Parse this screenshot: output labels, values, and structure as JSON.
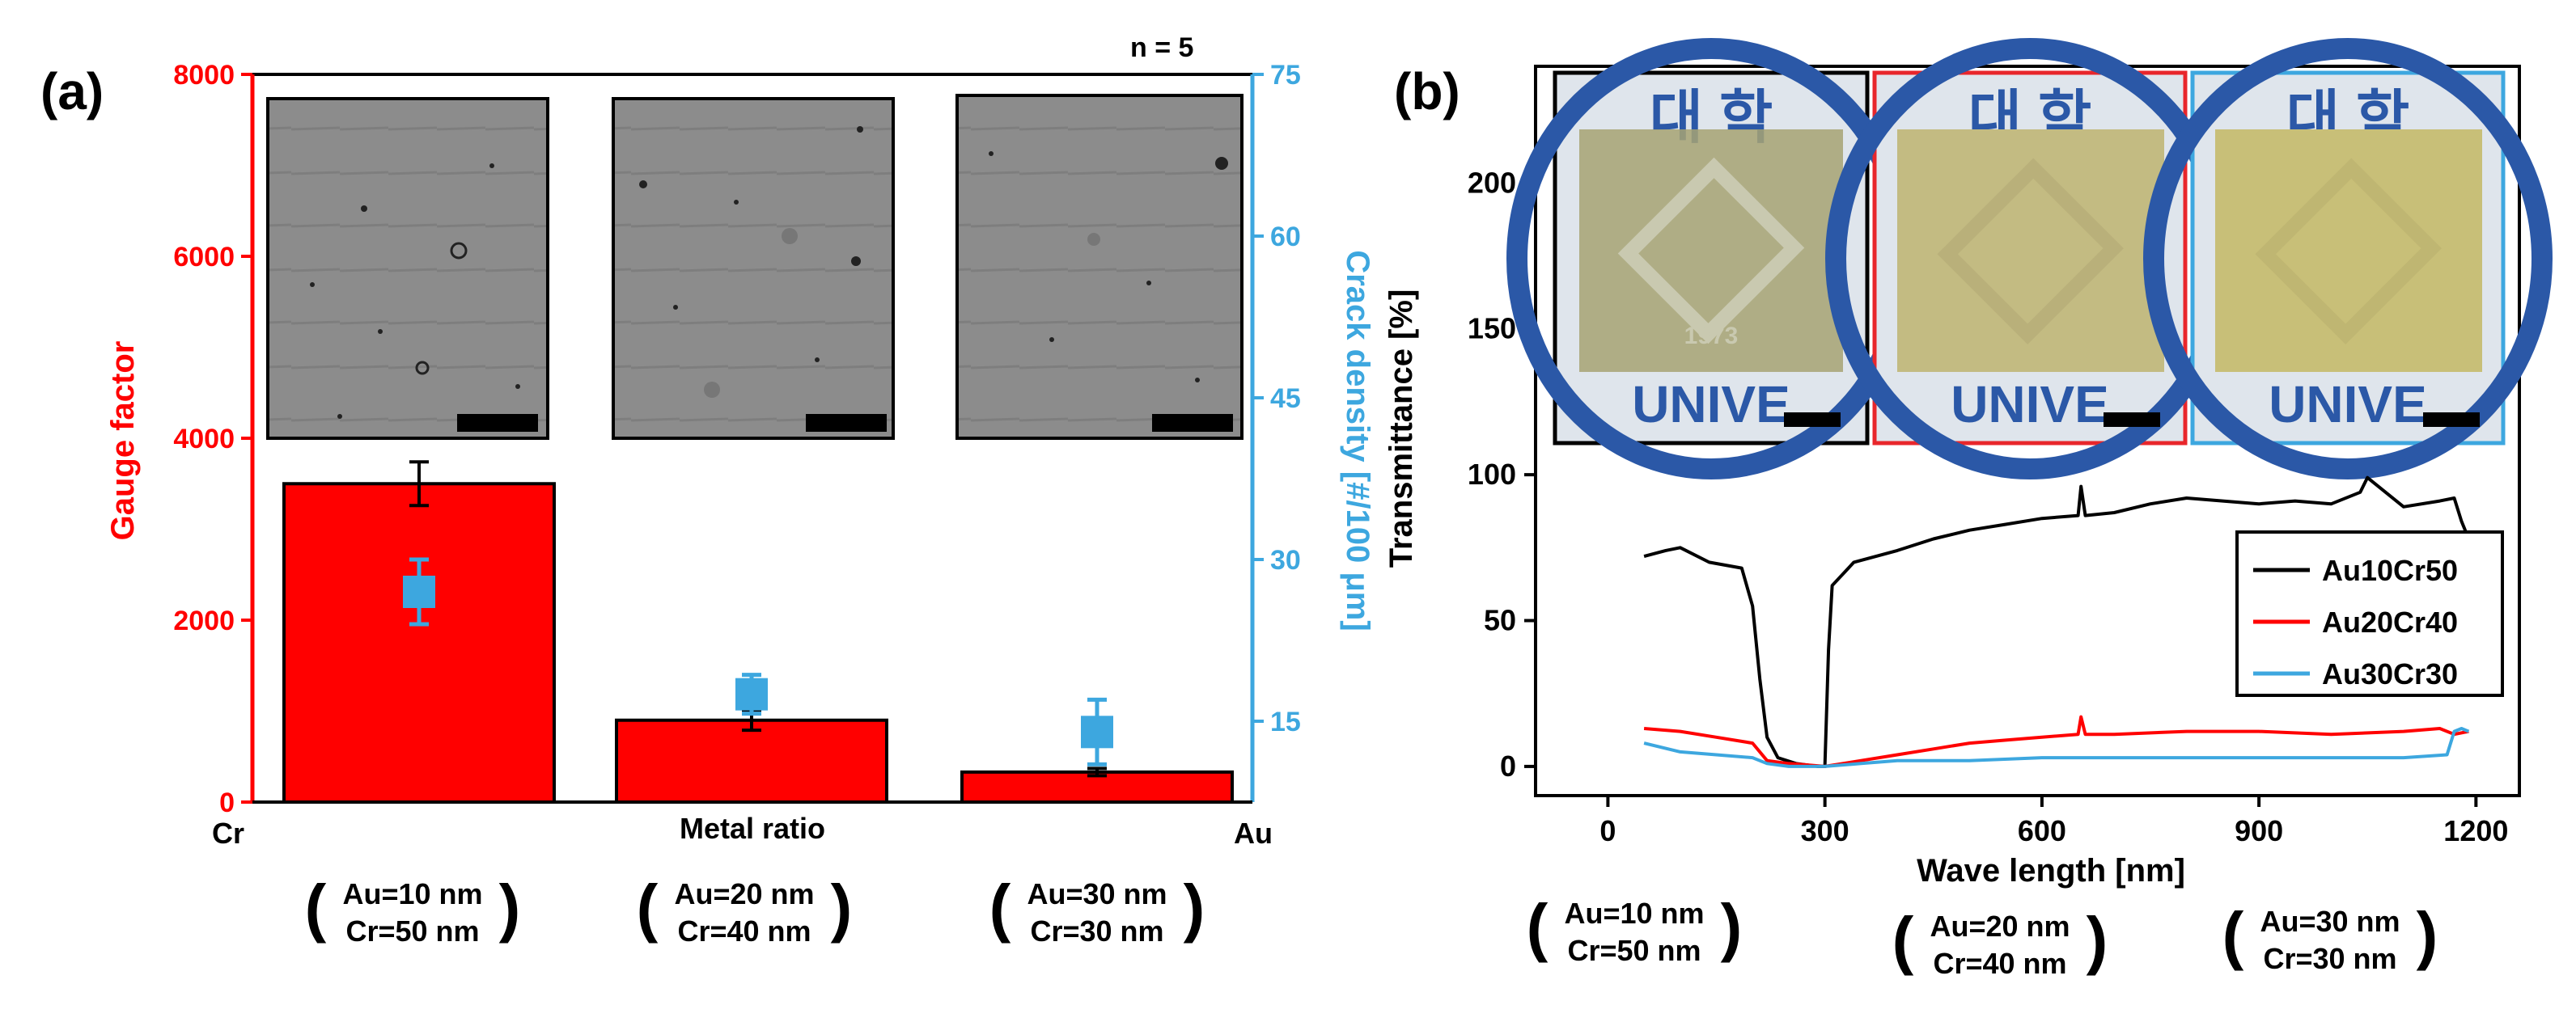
{
  "panel_a": {
    "label": "(a)",
    "n_label": "n = 5",
    "left_axis_label": "Gauge factor",
    "right_axis_label": "Crack density [#/100 μm]",
    "x_axis_label": "Metal ratio",
    "x_left_end": "Cr",
    "x_right_end": "Au",
    "inset_names": [
      "sem-inset-au10cr50",
      "sem-inset-au20cr40",
      "sem-inset-au30cr30"
    ]
  },
  "panel_b": {
    "label": "(b)",
    "y_axis_label": "Transmittance [%]",
    "x_axis_label": "Wave length [nm]",
    "photo_frame_colors": [
      "#000000",
      "#e8262b",
      "#3da7df"
    ],
    "photo_background_text": "대 학",
    "photo_bottom_text": "UNIVE",
    "photo_year_text": "1973"
  },
  "compositions": [
    {
      "au": "Au=10 nm",
      "cr": "Cr=50 nm"
    },
    {
      "au": "Au=20 nm",
      "cr": "Cr=40 nm"
    },
    {
      "au": "Au=30 nm",
      "cr": "Cr=30 nm"
    }
  ],
  "colors": {
    "gauge": "#ff0000",
    "crack": "#3da7df",
    "au10cr50": "#000000",
    "au20cr40": "#ff0000",
    "au30cr30": "#3da7df"
  },
  "chart_data": [
    {
      "type": "bar",
      "title": "",
      "xlabel": "Metal ratio",
      "categories": [
        "Au=10 nm Cr=50 nm",
        "Au=20 nm Cr=40 nm",
        "Au=30 nm Cr=30 nm"
      ],
      "series": [
        {
          "name": "Gauge factor",
          "axis": "left",
          "values": [
            3500,
            900,
            330
          ],
          "errors": [
            240,
            110,
            40
          ]
        },
        {
          "name": "Crack density [#/100 μm]",
          "axis": "right",
          "marker": "square",
          "values": [
            27,
            17.5,
            14
          ],
          "errors": [
            3,
            1.8,
            3
          ]
        }
      ],
      "ylabel": "Gauge factor",
      "ylim": [
        0,
        8000
      ],
      "yticks": [
        0,
        2000,
        4000,
        6000,
        8000
      ],
      "y2label": "Crack density [#/100 μm]",
      "y2lim": [
        7.5,
        75
      ],
      "y2ticks": [
        15,
        30,
        45,
        60,
        75
      ],
      "grid": false
    },
    {
      "type": "line",
      "title": "",
      "xlabel": "Wave length [nm]",
      "ylabel": "Transmittance [%]",
      "xlim": [
        -100,
        1260
      ],
      "ylim": [
        -10,
        240
      ],
      "xticks": [
        0,
        300,
        600,
        900,
        1200
      ],
      "yticks": [
        0,
        50,
        100,
        150,
        200
      ],
      "grid": false,
      "legend_position": "right",
      "series": [
        {
          "name": "Au10Cr50",
          "points": [
            [
              50,
              72
            ],
            [
              80,
              74
            ],
            [
              100,
              75
            ],
            [
              140,
              70
            ],
            [
              185,
              68
            ],
            [
              200,
              55
            ],
            [
              210,
              30
            ],
            [
              220,
              10
            ],
            [
              235,
              3
            ],
            [
              260,
              1
            ],
            [
              290,
              0
            ],
            [
              300,
              0
            ],
            [
              305,
              40
            ],
            [
              310,
              62
            ],
            [
              340,
              70
            ],
            [
              400,
              74
            ],
            [
              450,
              78
            ],
            [
              500,
              81
            ],
            [
              550,
              83
            ],
            [
              600,
              85
            ],
            [
              650,
              86
            ],
            [
              654,
              96
            ],
            [
              660,
              86
            ],
            [
              700,
              87
            ],
            [
              750,
              90
            ],
            [
              800,
              92
            ],
            [
              850,
              91
            ],
            [
              900,
              90
            ],
            [
              950,
              91
            ],
            [
              1000,
              90
            ],
            [
              1040,
              94
            ],
            [
              1050,
              99
            ],
            [
              1080,
              93
            ],
            [
              1100,
              89
            ],
            [
              1150,
              91
            ],
            [
              1170,
              92
            ],
            [
              1180,
              84
            ],
            [
              1190,
              78
            ]
          ]
        },
        {
          "name": "Au20Cr40",
          "points": [
            [
              50,
              13
            ],
            [
              100,
              12
            ],
            [
              150,
              10
            ],
            [
              200,
              8
            ],
            [
              220,
              2
            ],
            [
              250,
              1
            ],
            [
              300,
              0
            ],
            [
              350,
              2
            ],
            [
              400,
              4
            ],
            [
              450,
              6
            ],
            [
              500,
              8
            ],
            [
              550,
              9
            ],
            [
              600,
              10
            ],
            [
              650,
              11
            ],
            [
              654,
              17
            ],
            [
              660,
              11
            ],
            [
              700,
              11
            ],
            [
              800,
              12
            ],
            [
              900,
              12
            ],
            [
              1000,
              11
            ],
            [
              1100,
              12
            ],
            [
              1150,
              13
            ],
            [
              1170,
              11
            ],
            [
              1190,
              12
            ]
          ]
        },
        {
          "name": "Au30Cr30",
          "points": [
            [
              50,
              8
            ],
            [
              100,
              5
            ],
            [
              150,
              4
            ],
            [
              200,
              3
            ],
            [
              220,
              1
            ],
            [
              250,
              0
            ],
            [
              300,
              0
            ],
            [
              350,
              1
            ],
            [
              400,
              2
            ],
            [
              500,
              2
            ],
            [
              600,
              3
            ],
            [
              700,
              3
            ],
            [
              800,
              3
            ],
            [
              900,
              3
            ],
            [
              1000,
              3
            ],
            [
              1100,
              3
            ],
            [
              1160,
              4
            ],
            [
              1170,
              12
            ],
            [
              1180,
              13
            ],
            [
              1190,
              12
            ]
          ]
        }
      ]
    }
  ]
}
